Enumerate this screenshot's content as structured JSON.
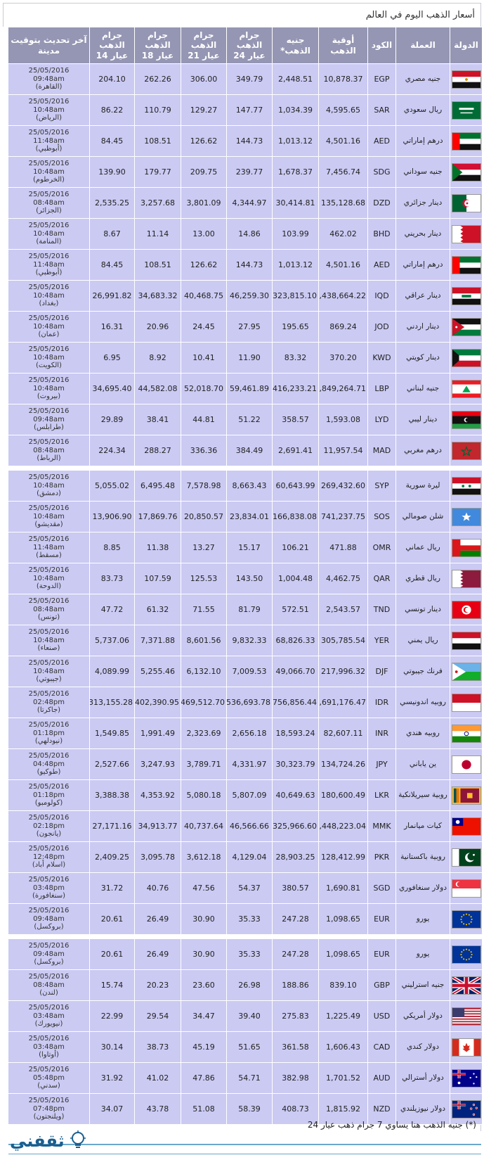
{
  "title": "أسعار الذهب اليوم في العالم",
  "headers": {
    "country": "الدولة",
    "currency": "العملة",
    "code": "الكود",
    "ounce": "أوقية الذهب",
    "pound": "جنيه الذهب*",
    "g24": "جرام الذهب عيار 24",
    "g21": "جرام الذهب عيار 21",
    "g18": "جرام الذهب عيار 18",
    "g14": "جرام الذهب عيار 14",
    "updated": "آخر تحديث بتوقيت مدينة"
  },
  "rows": [
    {
      "flag": "egypt-flag",
      "currency": "جنيه مصري",
      "code": "EGP",
      "ounce": "10,878.37",
      "pound": "2,448.51",
      "g24": "349.79",
      "g21": "306.00",
      "g18": "262.26",
      "g14": "204.10",
      "date": "25/05/2016",
      "time": "09:48am",
      "city": "(القاهرة)"
    },
    {
      "flag": "saudi-flag",
      "currency": "ريال سعودي",
      "code": "SAR",
      "ounce": "4,595.65",
      "pound": "1,034.39",
      "g24": "147.77",
      "g21": "129.27",
      "g18": "110.79",
      "g14": "86.22",
      "date": "25/05/2016",
      "time": "10:48am",
      "city": "(الرياض)"
    },
    {
      "flag": "uae-flag",
      "currency": "درهم إماراتي",
      "code": "AED",
      "ounce": "4,501.16",
      "pound": "1,013.12",
      "g24": "144.73",
      "g21": "126.62",
      "g18": "108.51",
      "g14": "84.45",
      "date": "25/05/2016",
      "time": "11:48am",
      "city": "(أبوظبي)"
    },
    {
      "flag": "sudan-flag",
      "currency": "جنيه سوداني",
      "code": "SDG",
      "ounce": "7,456.74",
      "pound": "1,678.37",
      "g24": "239.77",
      "g21": "209.75",
      "g18": "179.77",
      "g14": "139.90",
      "date": "25/05/2016",
      "time": "10:48am",
      "city": "(الخرطوم)"
    },
    {
      "flag": "algeria-flag",
      "currency": "دينار جزائري",
      "code": "DZD",
      "ounce": "135,128.68",
      "pound": "30,414.81",
      "g24": "4,344.97",
      "g21": "3,801.09",
      "g18": "3,257.68",
      "g14": "2,535.25",
      "date": "25/05/2016",
      "time": "08:48am",
      "city": "(الجزائر)"
    },
    {
      "flag": "bahrain-flag",
      "currency": "دينار بحريني",
      "code": "BHD",
      "ounce": "462.02",
      "pound": "103.99",
      "g24": "14.86",
      "g21": "13.00",
      "g18": "11.14",
      "g14": "8.67",
      "date": "25/05/2016",
      "time": "10:48am",
      "city": "(المنامة)"
    },
    {
      "flag": "uae-flag",
      "currency": "درهم إماراتي",
      "code": "AED",
      "ounce": "4,501.16",
      "pound": "1,013.12",
      "g24": "144.73",
      "g21": "126.62",
      "g18": "108.51",
      "g14": "84.45",
      "date": "25/05/2016",
      "time": "11:48am",
      "city": "(أبوظبي)"
    },
    {
      "flag": "iraq-flag",
      "currency": "دينار عراقي",
      "code": "IQD",
      "ounce": "1,438,664.22",
      "pound": "323,815.10",
      "g24": "46,259.30",
      "g21": "40,468.75",
      "g18": "34,683.32",
      "g14": "26,991.82",
      "date": "25/05/2016",
      "time": "10:48am",
      "city": "(بغداد)"
    },
    {
      "flag": "jordan-flag",
      "currency": "دينار اردني",
      "code": "JOD",
      "ounce": "869.24",
      "pound": "195.65",
      "g24": "27.95",
      "g21": "24.45",
      "g18": "20.96",
      "g14": "16.31",
      "date": "25/05/2016",
      "time": "10:48am",
      "city": "(عمان)"
    },
    {
      "flag": "kuwait-flag",
      "currency": "دينار كويتي",
      "code": "KWD",
      "ounce": "370.20",
      "pound": "83.32",
      "g24": "11.90",
      "g21": "10.41",
      "g18": "8.92",
      "g14": "6.95",
      "date": "25/05/2016",
      "time": "10:48am",
      "city": "(الكويت)"
    },
    {
      "flag": "lebanon-flag",
      "currency": "جنيه لبناني",
      "code": "LBP",
      "ounce": "1,849,264.71",
      "pound": "416,233.21",
      "g24": "59,461.89",
      "g21": "52,018.70",
      "g18": "44,582.08",
      "g14": "34,695.40",
      "date": "25/05/2016",
      "time": "10:48am",
      "city": "(بيروت)"
    },
    {
      "flag": "libya-flag",
      "currency": "دينار ليبي",
      "code": "LYD",
      "ounce": "1,593.08",
      "pound": "358.57",
      "g24": "51.22",
      "g21": "44.81",
      "g18": "38.41",
      "g14": "29.89",
      "date": "25/05/2016",
      "time": "09:48am",
      "city": "(طرابلس)"
    },
    {
      "flag": "morocco-flag",
      "currency": "درهم مغربي",
      "code": "MAD",
      "ounce": "11,957.54",
      "pound": "2,691.41",
      "g24": "384.49",
      "g21": "336.36",
      "g18": "288.27",
      "g14": "224.34",
      "date": "25/05/2016",
      "time": "08:48am",
      "city": "(الرباط)"
    },
    {
      "gap": true
    },
    {
      "flag": "syria-flag",
      "currency": "ليرة سورية",
      "code": "SYP",
      "ounce": "269,432.60",
      "pound": "60,643.99",
      "g24": "8,663.43",
      "g21": "7,578.98",
      "g18": "6,495.48",
      "g14": "5,055.02",
      "date": "25/05/2016",
      "time": "10:48am",
      "city": "(دمشق)"
    },
    {
      "flag": "somalia-flag",
      "currency": "شلن صومالي",
      "code": "SOS",
      "ounce": "741,237.75",
      "pound": "166,838.08",
      "g24": "23,834.01",
      "g21": "20,850.57",
      "g18": "17,869.76",
      "g14": "13,906.90",
      "date": "25/05/2016",
      "time": "10:48am",
      "city": "(مقديشو)"
    },
    {
      "flag": "oman-flag",
      "currency": "ريال عماني",
      "code": "OMR",
      "ounce": "471.88",
      "pound": "106.21",
      "g24": "15.17",
      "g21": "13.27",
      "g18": "11.38",
      "g14": "8.85",
      "date": "25/05/2016",
      "time": "11:48am",
      "city": "(مسقط)"
    },
    {
      "flag": "qatar-flag",
      "currency": "ريال قطري",
      "code": "QAR",
      "ounce": "4,462.75",
      "pound": "1,004.48",
      "g24": "143.50",
      "g21": "125.53",
      "g18": "107.59",
      "g14": "83.73",
      "date": "25/05/2016",
      "time": "10:48am",
      "city": "(الدوحة)"
    },
    {
      "flag": "tunisia-flag",
      "currency": "دينار تونسي",
      "code": "TND",
      "ounce": "2,543.57",
      "pound": "572.51",
      "g24": "81.79",
      "g21": "71.55",
      "g18": "61.32",
      "g14": "47.72",
      "date": "25/05/2016",
      "time": "08:48am",
      "city": "(تونس)"
    },
    {
      "flag": "yemen-flag",
      "currency": "ريال يمني",
      "code": "YER",
      "ounce": "305,785.54",
      "pound": "68,826.33",
      "g24": "9,832.33",
      "g21": "8,601.56",
      "g18": "7,371.88",
      "g14": "5,737.06",
      "date": "25/05/2016",
      "time": "10:48am",
      "city": "(صنعاء)"
    },
    {
      "flag": "djibouti-flag",
      "currency": "فرنك جيبوتي",
      "code": "DJF",
      "ounce": "217,996.32",
      "pound": "49,066.70",
      "g24": "7,009.53",
      "g21": "6,132.10",
      "g18": "5,255.46",
      "g14": "4,089.99",
      "date": "25/05/2016",
      "time": "10:48am",
      "city": "(جيبوتي)"
    },
    {
      "flag": "indonesia-flag",
      "currency": "روبيه اندونيسي",
      "code": "IDR",
      "ounce": "16,691,176.47",
      "pound": "3,756,856.44",
      "g24": "536,693.78",
      "g21": "469,512.70",
      "g18": "402,390.95",
      "g14": "313,155.28",
      "date": "25/05/2016",
      "time": "02:48pm",
      "city": "(جاكرتا)"
    },
    {
      "flag": "india-flag",
      "currency": "روبيه هندي",
      "code": "INR",
      "ounce": "82,607.11",
      "pound": "18,593.24",
      "g24": "2,656.18",
      "g21": "2,323.69",
      "g18": "1,991.49",
      "g14": "1,549.85",
      "date": "25/05/2016",
      "time": "01:18pm",
      "city": "(نيودلهي)"
    },
    {
      "flag": "japan-flag",
      "currency": "ين ياباني",
      "code": "JPY",
      "ounce": "134,724.26",
      "pound": "30,323.79",
      "g24": "4,331.97",
      "g21": "3,789.71",
      "g18": "3,247.93",
      "g14": "2,527.66",
      "date": "25/05/2016",
      "time": "04:48pm",
      "city": "(طوكيو)"
    },
    {
      "flag": "srilanka-flag",
      "currency": "روبية سيريلانكية",
      "code": "LKR",
      "ounce": "180,600.49",
      "pound": "40,649.63",
      "g24": "5,807.09",
      "g21": "5,080.18",
      "g18": "4,353.92",
      "g14": "3,388.38",
      "date": "25/05/2016",
      "time": "01:18pm",
      "city": "(كولومبو)"
    },
    {
      "flag": "myanmar-flag",
      "currency": "كيات ميانمار",
      "code": "MMK",
      "ounce": "1,448,223.04",
      "pound": "325,966.60",
      "g24": "46,566.66",
      "g21": "40,737.64",
      "g18": "34,913.77",
      "g14": "27,171.16",
      "date": "25/05/2016",
      "time": "02:18pm",
      "city": "(يانجون)"
    },
    {
      "flag": "pakistan-flag",
      "currency": "روبية باكستانية",
      "code": "PKR",
      "ounce": "128,412.99",
      "pound": "28,903.25",
      "g24": "4,129.04",
      "g21": "3,612.18",
      "g18": "3,095.78",
      "g14": "2,409.25",
      "date": "25/05/2016",
      "time": "12:48pm",
      "city": "(اسلام أباد)"
    },
    {
      "flag": "singapore-flag",
      "currency": "دولار سنغافوري",
      "code": "SGD",
      "ounce": "1,690.81",
      "pound": "380.57",
      "g24": "54.37",
      "g21": "47.56",
      "g18": "40.76",
      "g14": "31.72",
      "date": "25/05/2016",
      "time": "03:48pm",
      "city": "(سنغافورة)"
    },
    {
      "flag": "eu-flag",
      "currency": "يورو",
      "code": "EUR",
      "ounce": "1,098.65",
      "pound": "247.28",
      "g24": "35.33",
      "g21": "30.90",
      "g18": "26.49",
      "g14": "20.61",
      "date": "25/05/2016",
      "time": "09:48am",
      "city": "(بروكسل)"
    },
    {
      "gap": true
    },
    {
      "flag": "eu-flag",
      "currency": "يورو",
      "code": "EUR",
      "ounce": "1,098.65",
      "pound": "247.28",
      "g24": "35.33",
      "g21": "30.90",
      "g18": "26.49",
      "g14": "20.61",
      "date": "25/05/2016",
      "time": "09:48am",
      "city": "(بروكسل)"
    },
    {
      "flag": "uk-flag",
      "currency": "جنيه استرليني",
      "code": "GBP",
      "ounce": "839.10",
      "pound": "188.86",
      "g24": "26.98",
      "g21": "23.60",
      "g18": "20.23",
      "g14": "15.74",
      "date": "25/05/2016",
      "time": "08:48am",
      "city": "(لندن)"
    },
    {
      "flag": "usa-flag",
      "currency": "دولار أمريكي",
      "code": "USD",
      "ounce": "1,225.49",
      "pound": "275.83",
      "g24": "39.40",
      "g21": "34.47",
      "g18": "29.54",
      "g14": "22.99",
      "date": "25/05/2016",
      "time": "03:48am",
      "city": "(نيويورك)"
    },
    {
      "flag": "canada-flag",
      "currency": "دولار كندي",
      "code": "CAD",
      "ounce": "1,606.43",
      "pound": "361.58",
      "g24": "51.65",
      "g21": "45.19",
      "g18": "38.73",
      "g14": "30.14",
      "date": "25/05/2016",
      "time": "03:48am",
      "city": "(أوتاوا)"
    },
    {
      "flag": "australia-flag",
      "currency": "دولار أسترالي",
      "code": "AUD",
      "ounce": "1,701.52",
      "pound": "382.98",
      "g24": "54.71",
      "g21": "47.86",
      "g18": "41.02",
      "g14": "31.92",
      "date": "25/05/2016",
      "time": "05:48pm",
      "city": "(سدني)"
    },
    {
      "flag": "nz-flag",
      "currency": "دولار نيوزيلندي",
      "code": "NZD",
      "ounce": "1,815.92",
      "pound": "408.73",
      "g24": "58.39",
      "g21": "51.08",
      "g18": "43.78",
      "g14": "34.07",
      "date": "25/05/2016",
      "time": "07:48pm",
      "city": "(ويلنجتون)"
    }
  ],
  "footnote": "(*) جنيه الذهب هنا يساوي 7 جرام ذهب عيار 24",
  "brand": "ثقفني",
  "colors": {
    "header": "#9596b3",
    "cell": "#cbcaf3",
    "brand": "#1b5f8f"
  }
}
